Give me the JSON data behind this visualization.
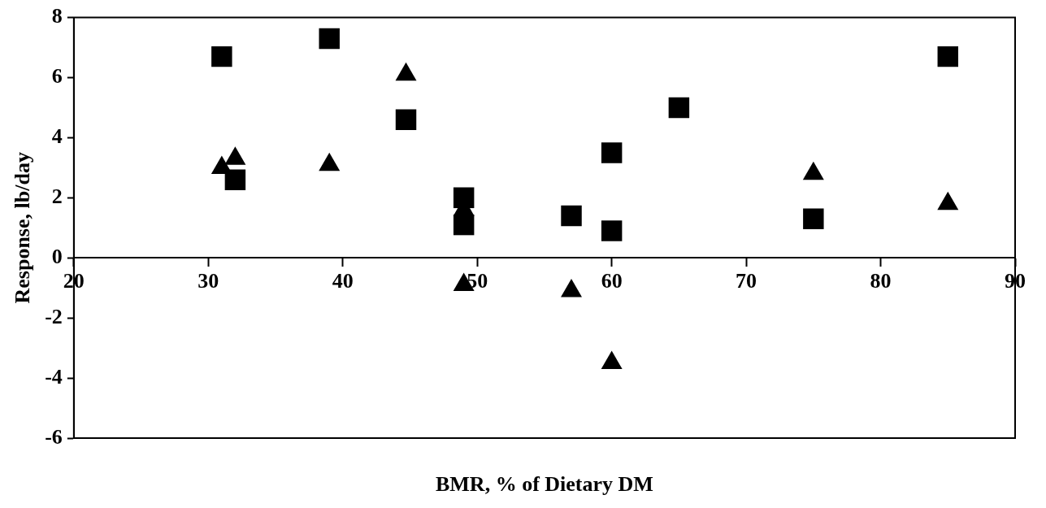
{
  "chart_data": {
    "type": "scatter",
    "xlabel": "BMR, % of Dietary DM",
    "ylabel": "Response, lb/day",
    "xlim": [
      20,
      90
    ],
    "xticks": [
      20,
      30,
      40,
      50,
      60,
      70,
      80,
      90
    ],
    "ylim": [
      -6,
      8
    ],
    "yticks": [
      -6,
      -4,
      -2,
      0,
      2,
      4,
      6,
      8
    ],
    "grid": false,
    "legend": false,
    "series": [
      {
        "color": "#000000",
        "marker": "square",
        "x": [
          31,
          32,
          39,
          44.7,
          49,
          49,
          57,
          60,
          60,
          65,
          75,
          85
        ],
        "values": [
          6.7,
          2.6,
          7.3,
          4.6,
          2.0,
          1.1,
          1.4,
          3.5,
          0.9,
          5.0,
          1.3,
          6.7
        ]
      },
      {
        "color": "#000000",
        "marker": "triangle",
        "x": [
          31,
          32,
          39,
          44.7,
          49,
          49,
          57,
          60,
          75,
          85
        ],
        "values": [
          3.0,
          3.3,
          3.1,
          6.1,
          1.6,
          -0.9,
          -1.1,
          -3.5,
          2.8,
          1.8
        ]
      }
    ]
  }
}
